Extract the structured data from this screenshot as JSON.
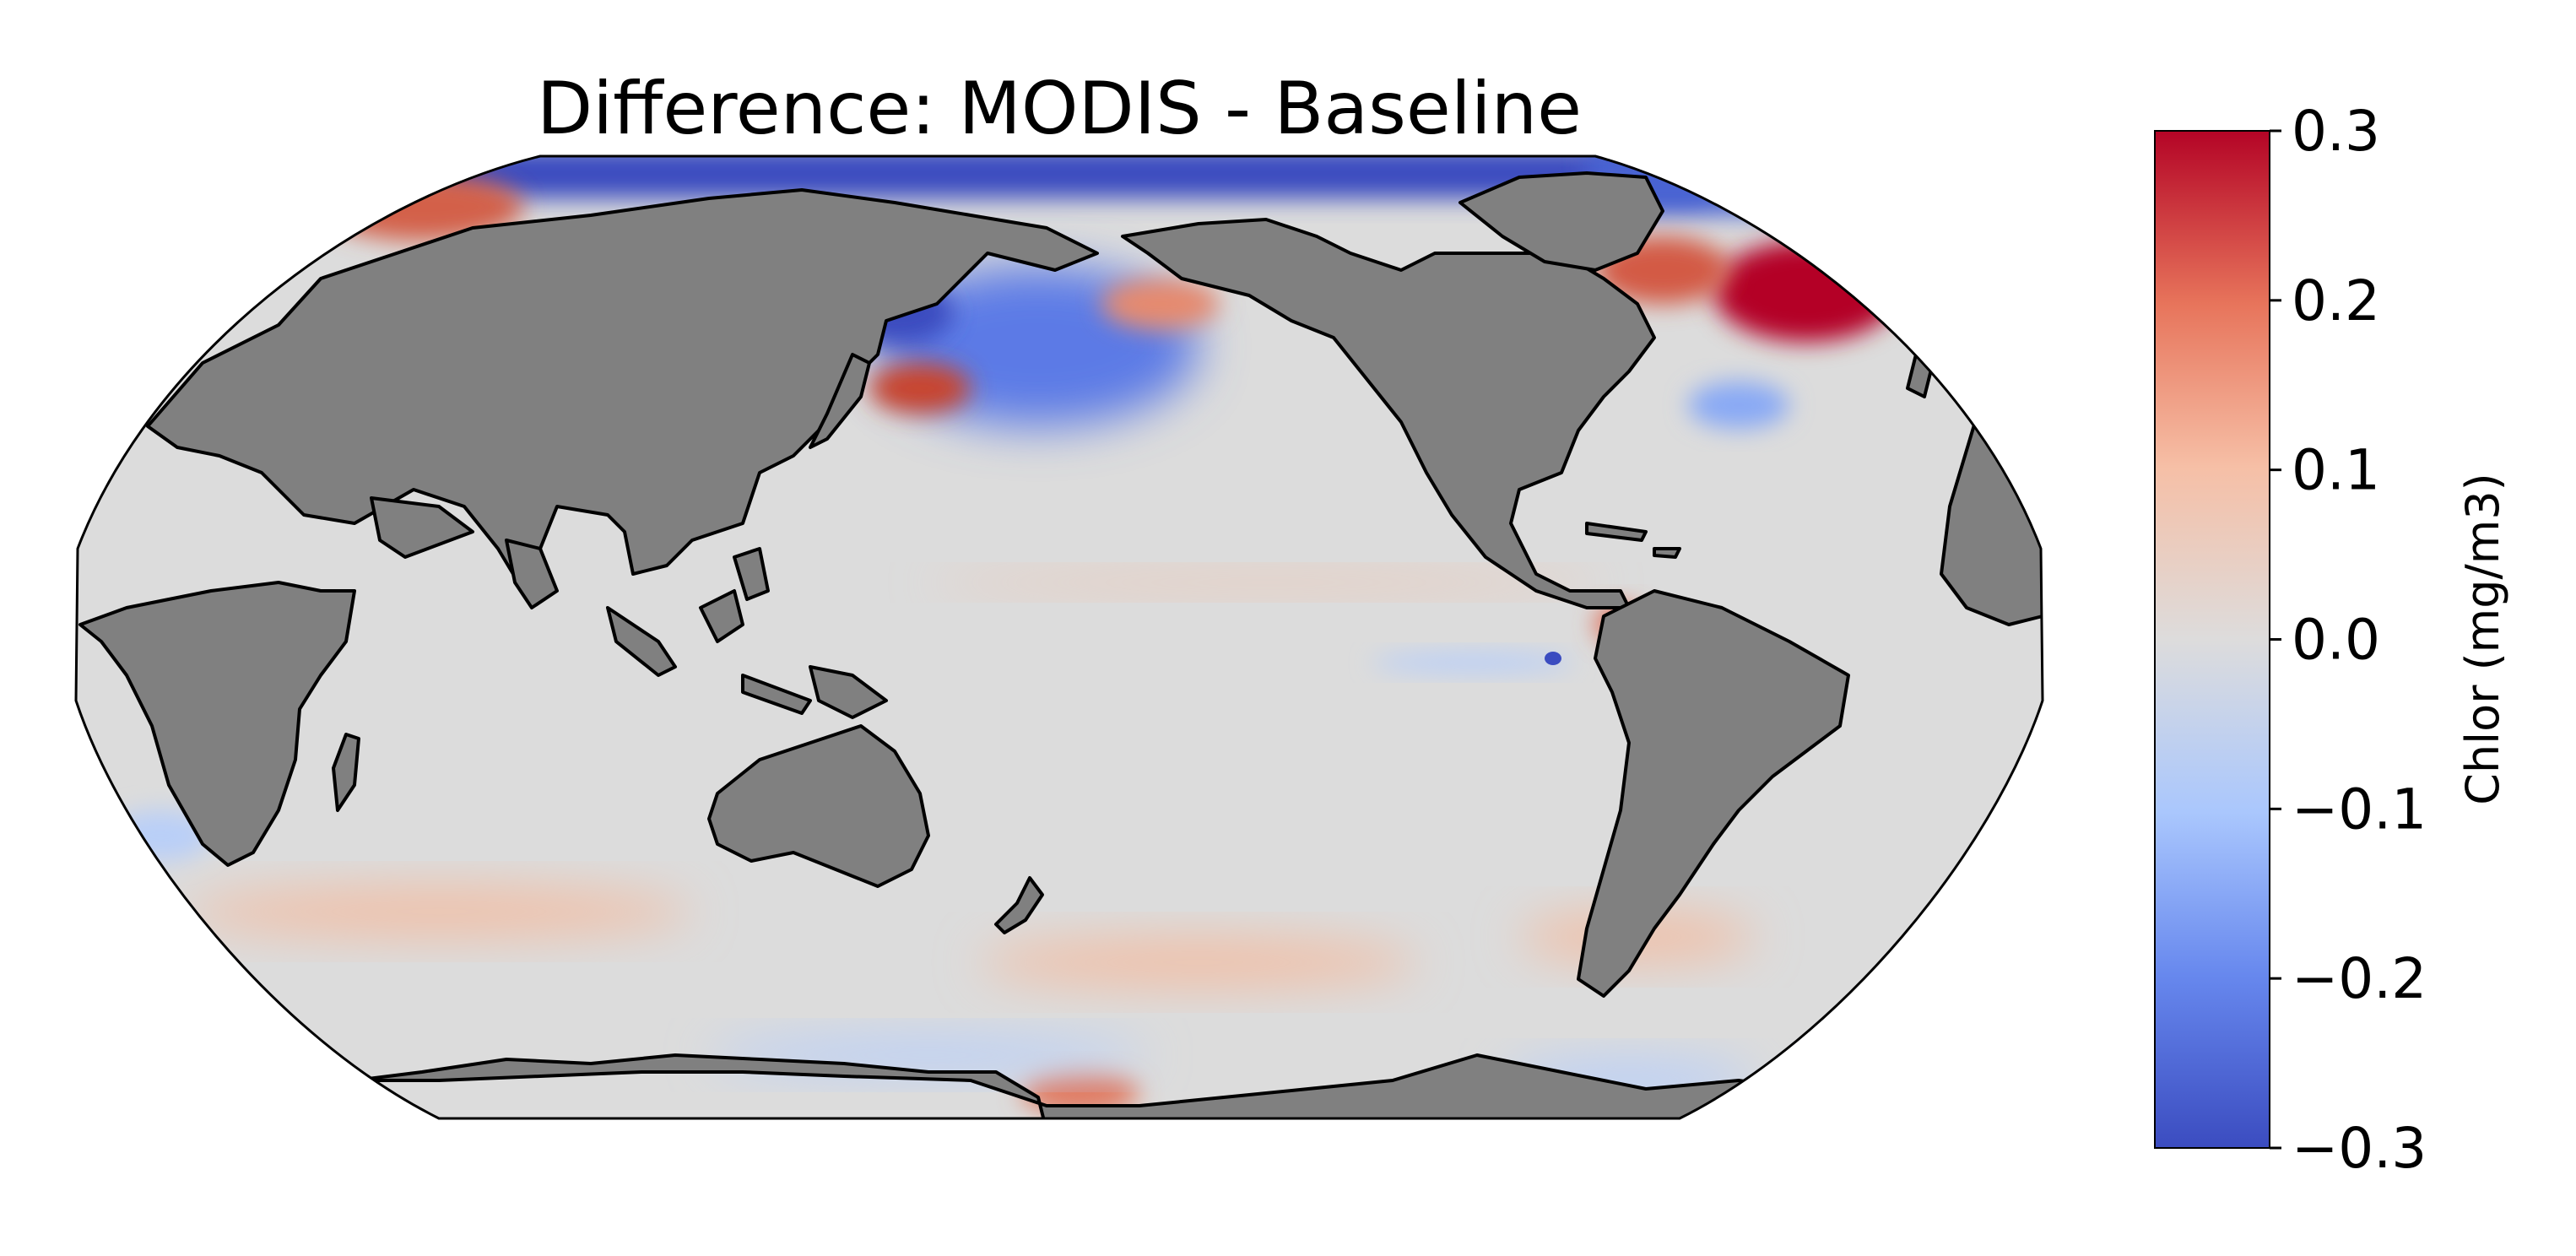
{
  "title": "Difference: MODIS - Baseline",
  "colorbar": {
    "label": "Chlor (mg/m3)",
    "min": -0.3,
    "max": 0.3,
    "ticks": [
      {
        "value": 0.3,
        "label": "0.3"
      },
      {
        "value": 0.2,
        "label": "0.2"
      },
      {
        "value": 0.1,
        "label": "0.1"
      },
      {
        "value": 0.0,
        "label": "0.0"
      },
      {
        "value": -0.1,
        "label": "−0.1"
      },
      {
        "value": -0.2,
        "label": "−0.2"
      },
      {
        "value": -0.3,
        "label": "−0.3"
      }
    ],
    "colormap_stops": [
      "#b40426",
      "#e7745b",
      "#f6bfa6",
      "#dddcdc",
      "#aac7fd",
      "#6788ee",
      "#3b4cc0"
    ]
  },
  "map": {
    "projection": "Robinson",
    "land_color": "#808080",
    "ocean_base_color": "#dcdcdc",
    "coastline_color": "#000000"
  }
}
